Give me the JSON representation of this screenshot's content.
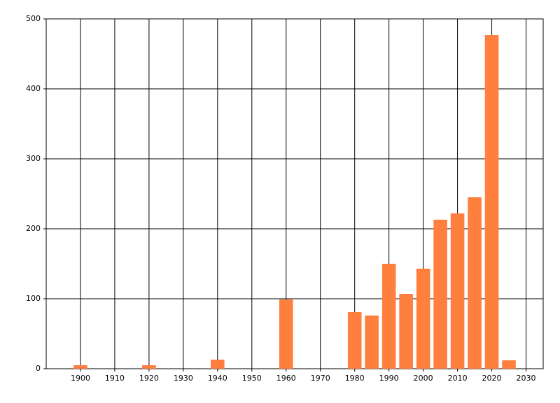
{
  "chart_data": {
    "type": "bar",
    "x": [
      1900,
      1920,
      1940,
      1960,
      1980,
      1985,
      1990,
      1995,
      2000,
      2005,
      2010,
      2015,
      2020,
      2025
    ],
    "values": [
      5,
      5,
      13,
      99,
      81,
      76,
      150,
      107,
      143,
      213,
      222,
      245,
      477,
      12
    ],
    "color": "#ff7f3f",
    "xlim": [
      1890,
      2035
    ],
    "ylim": [
      0,
      500
    ],
    "xticks": [
      1900,
      1910,
      1920,
      1930,
      1940,
      1950,
      1960,
      1970,
      1980,
      1990,
      2000,
      2010,
      2020,
      2030
    ],
    "yticks": [
      0,
      100,
      200,
      300,
      400,
      500
    ],
    "grid": true
  }
}
